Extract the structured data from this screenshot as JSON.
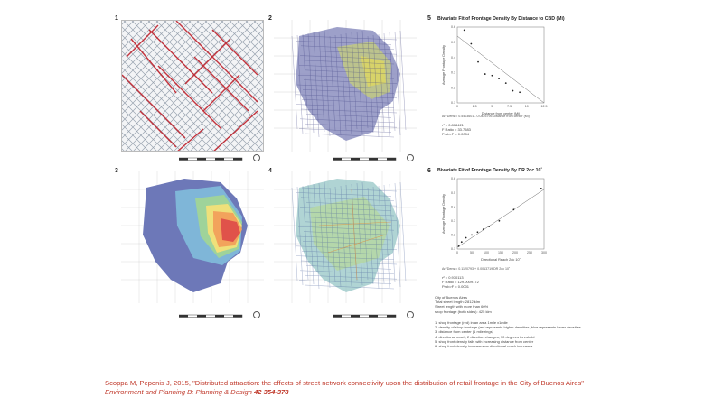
{
  "panels": {
    "p1": "1",
    "p2": "2",
    "p3": "3",
    "p4": "4",
    "p5": "5",
    "p6": "6"
  },
  "chart5": {
    "title": "Bivariate Fit of Frontage Density By Distance to CBD (Mi)",
    "fit_eq": "ArFDens = 0.5403601 - 0.0425795 Distance from center (Mi)",
    "rsq": "r² = 0.808421",
    "fratio": "F Ratio = 33.7583",
    "prob": "Prob>F = 0.0004"
  },
  "chart6": {
    "title": "Bivariate Fit of Frontage Density By DR 2dc 10˚",
    "fit_eq": "ArFDens = 0.1120793 + 0.0013719 DR 2dc 10˚",
    "rsq": "r² = 0.970113",
    "fratio": "F Ratio = 129.0009172",
    "prob": "Prob>F = 0.0001"
  },
  "city": {
    "name": "City of Buenos Aires",
    "total": "Total street length: 2812 klm",
    "width": "Street length with more than 60%",
    "shop": "shop frontage (both sides): 425 klm"
  },
  "notes": [
    "1. shop frontage (red) in an area 1mile x1mile",
    "2. density of shop frontage (red represents higher densities, blue represents lower densities",
    "3. distance from center (1 mile rings)",
    "4. directional reach, 2 direction changes, 10 degrees threshold",
    "5. shop front density falls with increasing distance from center",
    "6. shop front density increases as directional reach increases"
  ],
  "citation": {
    "line1": "Scoppa M, Peponis J, 2015, \"Distributed attraction: the effects of street network connectivity upon the distribution of retail frontage in the City of Buenos Aires\"",
    "journal": "Environment and Planning B: Planning & Design",
    "volume": "42 354-378"
  },
  "chart_data": [
    {
      "type": "scatter",
      "title": "Bivariate Fit of Frontage Density By Distance to CBD (Mi)",
      "xlabel": "Distance from center (Mi)",
      "ylabel": "Average Frontage Density",
      "xlim": [
        0,
        12.5
      ],
      "ylim": [
        0.1,
        0.6
      ],
      "xticks": [
        "0",
        "2.5",
        "5",
        "7.5",
        "10",
        "12.5"
      ],
      "yticks": [
        "0.1",
        "0.2",
        "0.3",
        "0.4",
        "0.5",
        "0.6"
      ],
      "x": [
        1,
        2,
        3,
        4,
        5,
        6,
        7,
        8,
        9
      ],
      "y": [
        0.58,
        0.49,
        0.37,
        0.29,
        0.28,
        0.26,
        0.23,
        0.18,
        0.17
      ],
      "fit": {
        "intercept": 0.5403601,
        "slope": -0.0425795
      },
      "grid": false
    },
    {
      "type": "scatter",
      "title": "Bivariate Fit of Frontage Density By DR 2dc 10˚",
      "xlabel": "Directional Reach 2dc 10˚",
      "ylabel": "Average Frontage Density",
      "xlim": [
        0,
        300
      ],
      "ylim": [
        0.1,
        0.6
      ],
      "xticks": [
        "0",
        "50",
        "100",
        "150",
        "200",
        "250",
        "300"
      ],
      "yticks": [
        "0.1",
        "0.2",
        "0.3",
        "0.4",
        "0.5",
        "0.6"
      ],
      "x": [
        5,
        15,
        30,
        50,
        70,
        90,
        110,
        145,
        195,
        290
      ],
      "y": [
        0.12,
        0.15,
        0.18,
        0.2,
        0.22,
        0.24,
        0.26,
        0.3,
        0.38,
        0.53
      ],
      "fit": {
        "intercept": 0.1120793,
        "slope": 0.0013719
      },
      "grid": false
    }
  ]
}
